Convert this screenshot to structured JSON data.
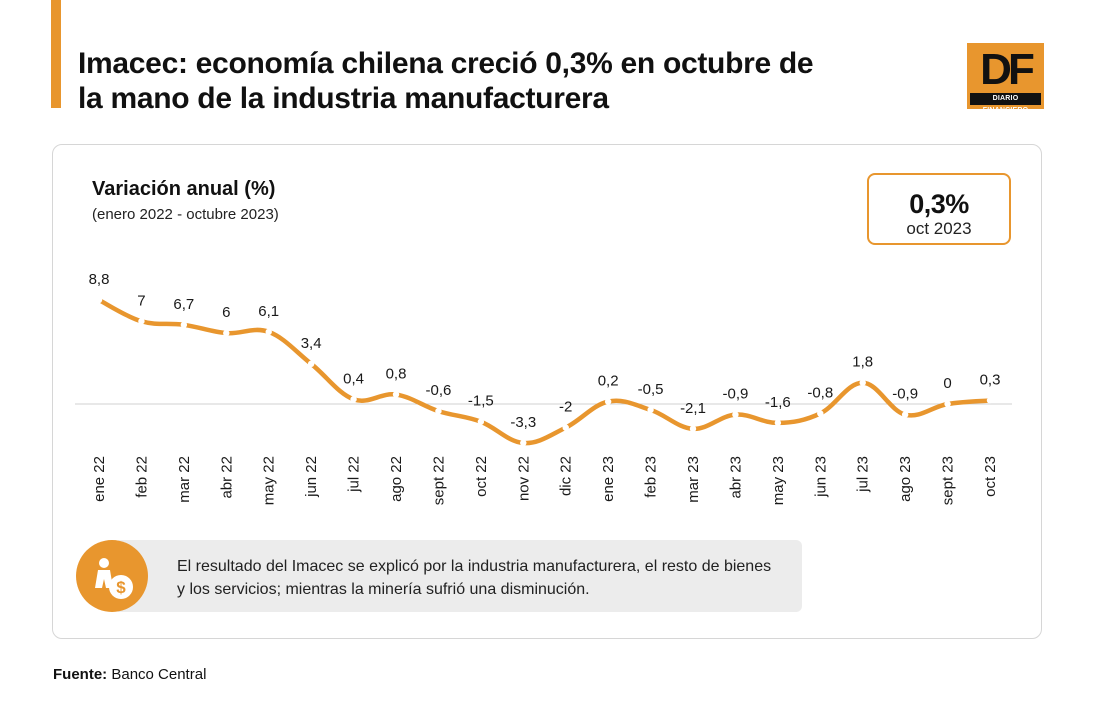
{
  "header": {
    "title": "Imacec: economía chilena creció 0,3% en octubre de la mano de la industria manufacturera",
    "logo_text": "DF",
    "logo_subtitle": "DIARIO FINANCIERO",
    "accent_color": "#e8962e"
  },
  "highlight": {
    "value": "0,3%",
    "label": "oct 2023"
  },
  "chart_data": {
    "type": "line",
    "title": "Variación anual (%)",
    "subtitle": "(enero 2022 - octubre 2023)",
    "categories": [
      "ene 22",
      "feb 22",
      "mar 22",
      "abr 22",
      "may 22",
      "jun 22",
      "jul 22",
      "ago 22",
      "sept 22",
      "oct 22",
      "nov 22",
      "dic 22",
      "ene 23",
      "feb 23",
      "mar 23",
      "abr 23",
      "may 23",
      "jun 23",
      "jul 23",
      "ago 23",
      "sept 23",
      "oct 23"
    ],
    "values": [
      8.8,
      7,
      6.7,
      6,
      6.1,
      3.4,
      0.4,
      0.8,
      -0.6,
      -1.5,
      -3.3,
      -2,
      0.2,
      -0.5,
      -2.1,
      -0.9,
      -1.6,
      -0.8,
      1.8,
      -0.9,
      0,
      0.3
    ],
    "value_labels": [
      "8,8",
      "7",
      "6,7",
      "6",
      "6,1",
      "3,4",
      "0,4",
      "0,8",
      "-0,6",
      "-1,5",
      "-3,3",
      "-2",
      "0,2",
      "-0,5",
      "-2,1",
      "-0,9",
      "-1,6",
      "-0,8",
      "1,8",
      "-0,9",
      "0",
      "0,3"
    ],
    "ylim": [
      -3.3,
      8.8
    ],
    "line_color": "#e8962e",
    "grid": false,
    "zero_line": true
  },
  "note": {
    "icon": "money-bag-icon",
    "text": "El resultado del Imacec se explicó por la industria manufacturera, el resto de bienes y los servicios; mientras la minería sufrió una disminución."
  },
  "source": {
    "label": "Fuente:",
    "value": "Banco Central"
  }
}
